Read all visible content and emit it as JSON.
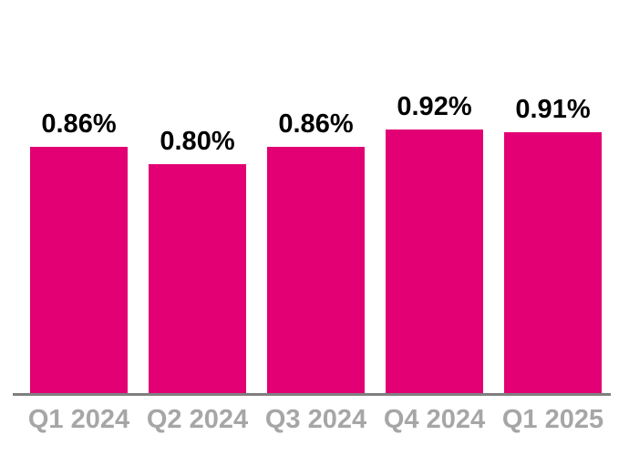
{
  "chart_data": {
    "type": "bar",
    "title": "",
    "xlabel": "",
    "ylabel": "",
    "categories": [
      "Q1 2024",
      "Q2 2024",
      "Q3 2024",
      "Q4 2024",
      "Q1 2025"
    ],
    "values": [
      0.86,
      0.8,
      0.86,
      0.92,
      0.91
    ],
    "data_labels": [
      "0.86%",
      "0.80%",
      "0.86%",
      "0.92%",
      "0.91%"
    ],
    "unit": "%",
    "ylim": [
      0,
      0.92
    ],
    "grid": false,
    "legend": "none",
    "colors": {
      "bar": "#E20074",
      "data_label": "#000000",
      "category_label": "#a6a6a6",
      "axis_line": "#7f7f7f",
      "background": "#ffffff"
    }
  }
}
